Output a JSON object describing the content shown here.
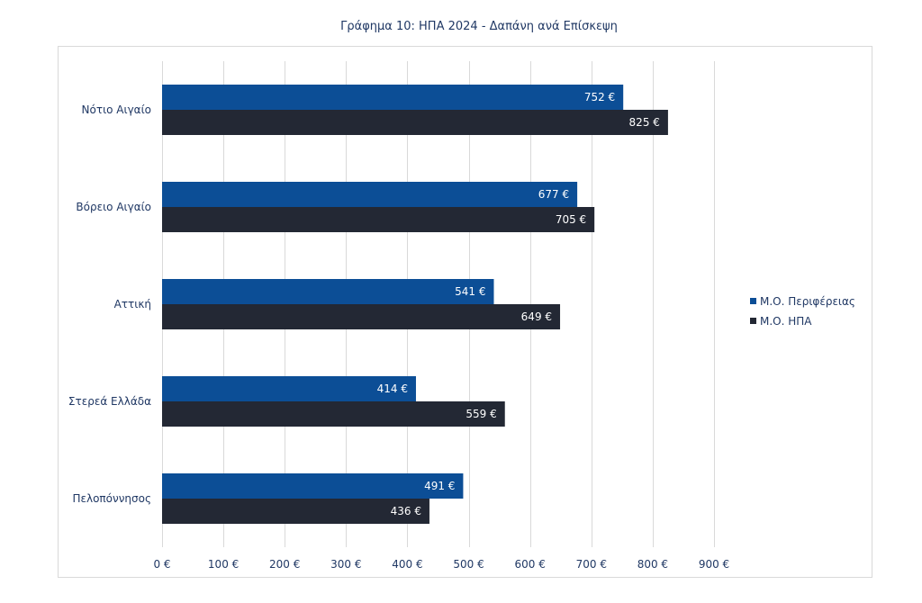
{
  "chart_data": {
    "type": "bar",
    "orientation": "horizontal",
    "title": "Γράφημα 10: ΗΠΑ 2024 - Δαπάνη ανά Επίσκεψη",
    "categories": [
      "Νότιο Αιγαίο",
      "Βόρειο Αιγαίο",
      "Αττική",
      "Στερεά Ελλάδα",
      "Πελοπόννησος"
    ],
    "series": [
      {
        "name": "Μ.Ο. Περιφέρειας",
        "color": "#0C4E96",
        "values": [
          752,
          677,
          541,
          414,
          491
        ],
        "labels": [
          "752 €",
          "677 €",
          "541 €",
          "414 €",
          "491 €"
        ]
      },
      {
        "name": "Μ.Ο. ΗΠΑ",
        "color": "#232834",
        "values": [
          825,
          705,
          649,
          559,
          436
        ],
        "labels": [
          "825 €",
          "705 €",
          "649 €",
          "559 €",
          "436 €"
        ]
      }
    ],
    "xlim": [
      0,
      900
    ],
    "xticks": [
      0,
      100,
      200,
      300,
      400,
      500,
      600,
      700,
      800,
      900
    ],
    "xtick_labels": [
      "0 €",
      "100 €",
      "200 €",
      "300 €",
      "400 €",
      "500 €",
      "600 €",
      "700 €",
      "800 €",
      "900 €"
    ],
    "grid": true,
    "legend": "right"
  }
}
